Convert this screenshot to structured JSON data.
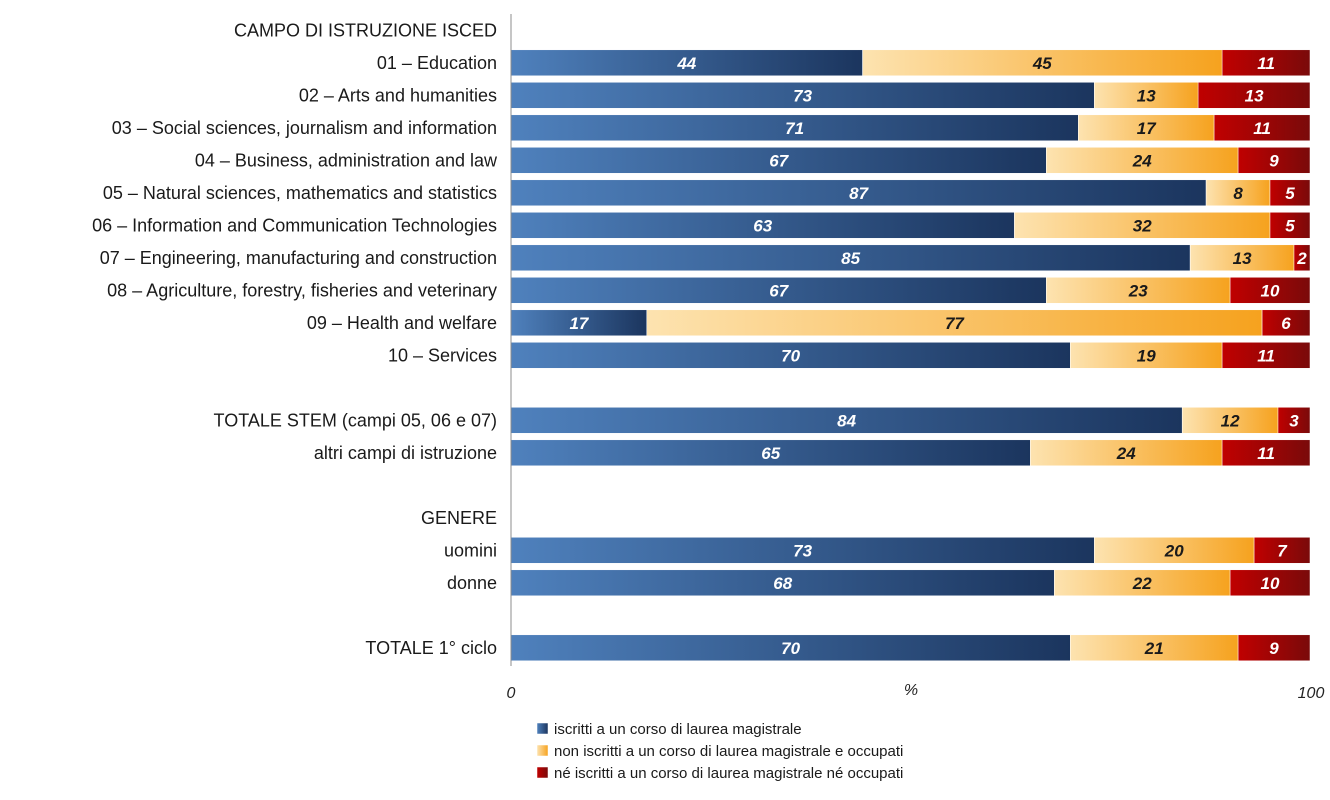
{
  "chart_data": {
    "type": "bar",
    "orientation": "horizontal",
    "stacked": true,
    "xlabel": "%",
    "xlim": [
      0,
      100
    ],
    "x_ticks": [
      "0",
      "100"
    ],
    "grid": false,
    "legend_position": "bottom",
    "colors": {
      "iscritti": [
        "#4f81bd",
        "#1b355e"
      ],
      "occupati": [
        "#fde3b0",
        "#f6a21e"
      ],
      "ne": [
        "#c00000",
        "#7a0a0a"
      ]
    },
    "series": [
      {
        "key": "iscritti",
        "name": "iscritti a un corso di laurea magistrale",
        "label_color": "#ffffff"
      },
      {
        "key": "occupati",
        "name": "non iscritti a un corso di laurea magistrale e occupati",
        "label_color": "#1a1a1a"
      },
      {
        "key": "ne",
        "name": "né iscritti a un corso di laurea magistrale né occupati",
        "label_color": "#ffffff"
      }
    ],
    "rows": [
      {
        "kind": "header",
        "label": "CAMPO DI ISTRUZIONE ISCED"
      },
      {
        "kind": "bar",
        "label": "01 – Education",
        "values": [
          44,
          45,
          11
        ]
      },
      {
        "kind": "bar",
        "label": "02 – Arts and humanities",
        "values": [
          73,
          13,
          13
        ]
      },
      {
        "kind": "bar",
        "label": "03 – Social sciences, journalism and information",
        "values": [
          71,
          17,
          11
        ]
      },
      {
        "kind": "bar",
        "label": "04 – Business, administration and law",
        "values": [
          67,
          24,
          9
        ]
      },
      {
        "kind": "bar",
        "label": "05 – Natural sciences, mathematics and statistics",
        "values": [
          87,
          8,
          5
        ]
      },
      {
        "kind": "bar",
        "label": "06 – Information and Communication Technologies",
        "values": [
          63,
          32,
          5
        ]
      },
      {
        "kind": "bar",
        "label": "07 – Engineering, manufacturing and construction",
        "values": [
          85,
          13,
          2
        ]
      },
      {
        "kind": "bar",
        "label": "08 – Agriculture, forestry, fisheries and veterinary",
        "values": [
          67,
          23,
          10
        ]
      },
      {
        "kind": "bar",
        "label": "09 – Health and welfare",
        "values": [
          17,
          77,
          6
        ]
      },
      {
        "kind": "bar",
        "label": "10 – Services",
        "values": [
          70,
          19,
          11
        ]
      },
      {
        "kind": "gap"
      },
      {
        "kind": "bar",
        "label": "TOTALE STEM (campi 05, 06 e 07)",
        "values": [
          84,
          12,
          3
        ]
      },
      {
        "kind": "bar",
        "label": "altri campi di istruzione",
        "values": [
          65,
          24,
          11
        ]
      },
      {
        "kind": "gap"
      },
      {
        "kind": "header",
        "label": "GENERE"
      },
      {
        "kind": "bar",
        "label": "uomini",
        "values": [
          73,
          20,
          7
        ]
      },
      {
        "kind": "bar",
        "label": "donne",
        "values": [
          68,
          22,
          10
        ]
      },
      {
        "kind": "gap"
      },
      {
        "kind": "bar",
        "label": "TOTALE 1° ciclo",
        "values": [
          70,
          21,
          9
        ]
      }
    ]
  }
}
